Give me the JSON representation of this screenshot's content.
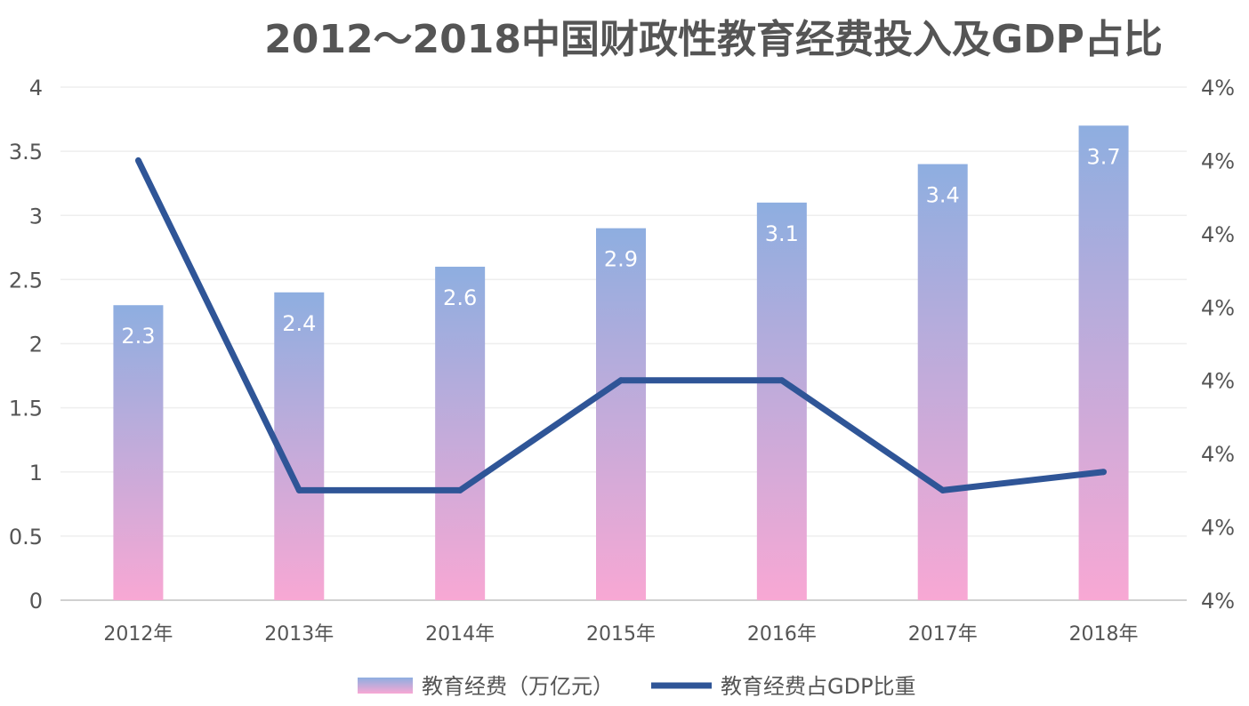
{
  "chart_data": {
    "type": "bar",
    "title": "2012～2018中国财政性教育经费投入及GDP占比",
    "categories": [
      "2012年",
      "2013年",
      "2014年",
      "2015年",
      "2016年",
      "2017年",
      "2018年"
    ],
    "series": [
      {
        "name": "教育经费（万亿元）",
        "type": "bar",
        "axis": "left",
        "values": [
          2.3,
          2.4,
          2.6,
          2.9,
          3.1,
          3.4,
          3.7
        ],
        "data_labels": [
          "2.3",
          "2.4",
          "2.6",
          "2.9",
          "3.1",
          "3.4",
          "3.7"
        ],
        "color_top": "#8eaee0",
        "color_bottom": "#f8a8d4"
      },
      {
        "name": "教育经费占GDP比重",
        "type": "line",
        "axis": "right",
        "values": [
          4.28,
          4.1,
          4.1,
          4.16,
          4.16,
          4.1,
          4.11
        ],
        "color": "#2f5597"
      }
    ],
    "y_left": {
      "ylim": [
        0,
        4
      ],
      "ticks": [
        "0",
        "0.5",
        "1",
        "1.5",
        "2",
        "2.5",
        "3",
        "3.5",
        "4"
      ]
    },
    "y_right": {
      "ylim": [
        4.04,
        4.32
      ],
      "ticks": [
        "4%",
        "4%",
        "4%",
        "4%",
        "4%",
        "4%",
        "4%",
        "4%"
      ]
    },
    "grid": true,
    "legend": "bottom"
  }
}
